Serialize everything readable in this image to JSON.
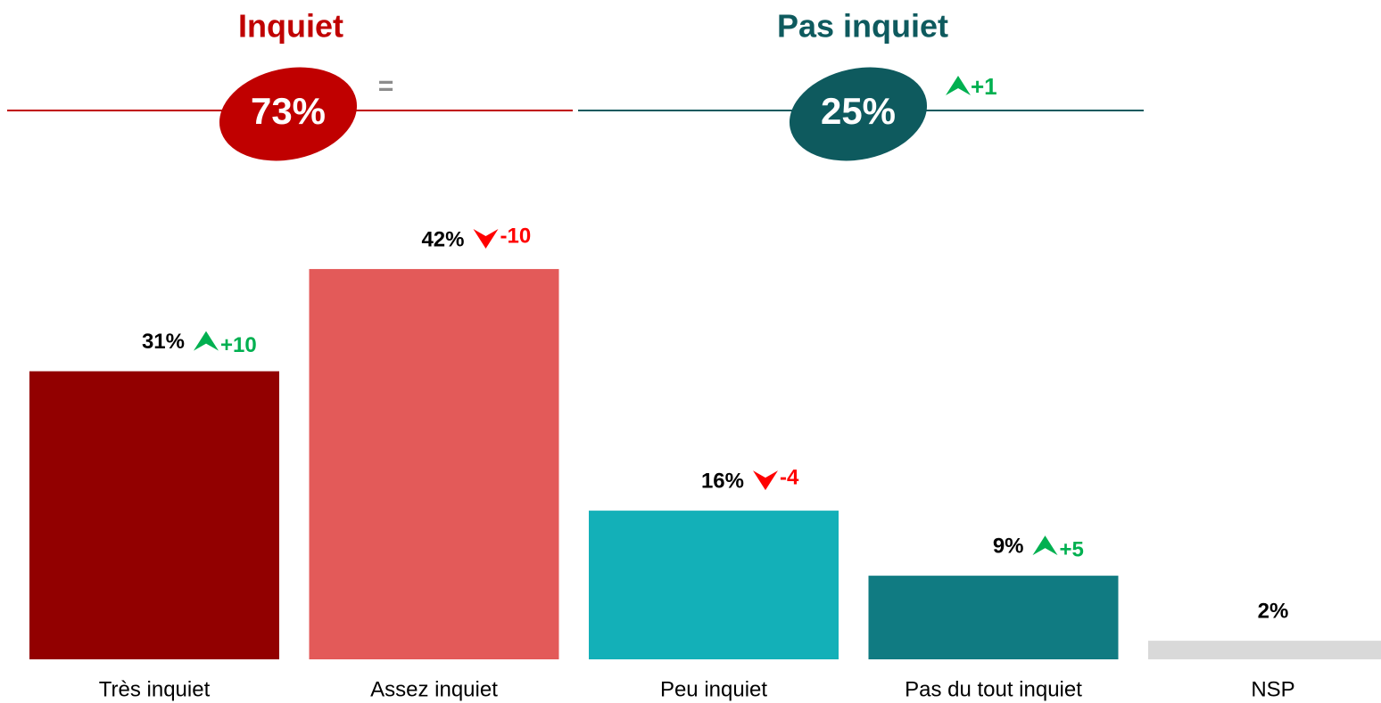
{
  "chart_data": {
    "type": "bar",
    "groups": [
      {
        "title": "Inquiet",
        "value_label": "73%",
        "change": "=",
        "change_direction": null,
        "color": "#c00000"
      },
      {
        "title": "Pas inquiet",
        "value_label": "25%",
        "change": "+1",
        "change_direction": "up",
        "color": "#0e5a5e"
      }
    ],
    "categories": [
      "Très inquiet",
      "Assez inquiet",
      "Peu inquiet",
      "Pas du tout inquiet",
      "NSP"
    ],
    "values": [
      31,
      42,
      16,
      9,
      2
    ],
    "value_labels": [
      "31%",
      "42%",
      "16%",
      "9%",
      "2%"
    ],
    "changes": [
      "+10",
      "-10",
      "-4",
      "+5",
      null
    ],
    "change_directions": [
      "up",
      "down",
      "down",
      "up",
      null
    ],
    "colors": [
      "#920000",
      "#e35a59",
      "#13b0b8",
      "#107b82",
      "#d9d9d9"
    ]
  }
}
